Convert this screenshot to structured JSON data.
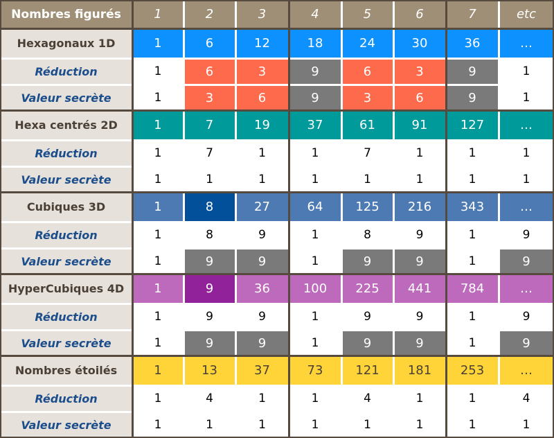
{
  "header": {
    "title": "Nombres figurés",
    "columns": [
      "1",
      "2",
      "3",
      "4",
      "5",
      "6",
      "7",
      "etc"
    ]
  },
  "colors": {
    "header_bg": "#a08f77",
    "label_bg": "#e6e1db",
    "label_main_text": "#4a4036",
    "label_sub_text": "#1c4e8c",
    "divider": "#564a3e",
    "salmon": "#fe6a4c",
    "gray": "#7a7a7a"
  },
  "groups": [
    {
      "title": "Hexagonaux 1D",
      "color": "#0d91ff",
      "sequence": [
        "1",
        "6",
        "12",
        "18",
        "24",
        "30",
        "36",
        "…"
      ],
      "sequence_highlights": {},
      "rows": [
        {
          "label": "Réduction",
          "values": [
            "1",
            "6",
            "3",
            "9",
            "6",
            "3",
            "9",
            "1"
          ],
          "fills": [
            "",
            "#fe6a4c",
            "#fe6a4c",
            "#7a7a7a",
            "#fe6a4c",
            "#fe6a4c",
            "#7a7a7a",
            ""
          ]
        },
        {
          "label": "Valeur secrète",
          "values": [
            "1",
            "3",
            "6",
            "9",
            "3",
            "6",
            "9",
            "1"
          ],
          "fills": [
            "",
            "#fe6a4c",
            "#fe6a4c",
            "#7a7a7a",
            "#fe6a4c",
            "#fe6a4c",
            "#7a7a7a",
            ""
          ]
        }
      ]
    },
    {
      "title": "Hexa centrés 2D",
      "color": "#009a9a",
      "sequence": [
        "1",
        "7",
        "19",
        "37",
        "61",
        "91",
        "127",
        "…"
      ],
      "sequence_highlights": {},
      "rows": [
        {
          "label": "Réduction",
          "values": [
            "1",
            "7",
            "1",
            "1",
            "7",
            "1",
            "1",
            "1"
          ],
          "fills": [
            "",
            "",
            "",
            "",
            "",
            "",
            "",
            ""
          ]
        },
        {
          "label": "Valeur secrète",
          "values": [
            "1",
            "1",
            "1",
            "1",
            "1",
            "1",
            "1",
            "1"
          ],
          "fills": [
            "",
            "",
            "",
            "",
            "",
            "",
            "",
            ""
          ]
        }
      ]
    },
    {
      "title": "Cubiques 3D",
      "color": "#4d7ab2",
      "sequence": [
        "1",
        "8",
        "27",
        "64",
        "125",
        "216",
        "343",
        "…"
      ],
      "sequence_highlights": {
        "1": "#02509a"
      },
      "rows": [
        {
          "label": "Réduction",
          "values": [
            "1",
            "8",
            "9",
            "1",
            "8",
            "9",
            "1",
            "9"
          ],
          "fills": [
            "",
            "",
            "",
            "",
            "",
            "",
            "",
            ""
          ]
        },
        {
          "label": "Valeur secrète",
          "values": [
            "1",
            "9",
            "9",
            "1",
            "9",
            "9",
            "1",
            "9"
          ],
          "fills": [
            "",
            "#7a7a7a",
            "#7a7a7a",
            "",
            "#7a7a7a",
            "#7a7a7a",
            "",
            "#7a7a7a"
          ]
        }
      ]
    },
    {
      "title": "HyperCubiques 4D",
      "color": "#bd6abd",
      "sequence": [
        "1",
        "9",
        "36",
        "100",
        "225",
        "441",
        "784",
        "…"
      ],
      "sequence_highlights": {
        "1": "#91229a"
      },
      "rows": [
        {
          "label": "Réduction",
          "values": [
            "1",
            "9",
            "9",
            "1",
            "9",
            "9",
            "1",
            "9"
          ],
          "fills": [
            "",
            "",
            "",
            "",
            "",
            "",
            "",
            ""
          ]
        },
        {
          "label": "Valeur secrète",
          "values": [
            "1",
            "9",
            "9",
            "1",
            "9",
            "9",
            "1",
            "9"
          ],
          "fills": [
            "",
            "#7a7a7a",
            "#7a7a7a",
            "",
            "#7a7a7a",
            "#7a7a7a",
            "",
            "#7a7a7a"
          ]
        }
      ]
    },
    {
      "title": "Nombres étoilés",
      "color": "#fed438",
      "sequence": [
        "1",
        "13",
        "37",
        "73",
        "121",
        "181",
        "253",
        "…"
      ],
      "sequence_highlights": {},
      "sequence_text_color": "#4a4036",
      "rows": [
        {
          "label": "Réduction",
          "values": [
            "1",
            "4",
            "1",
            "1",
            "4",
            "1",
            "1",
            "4"
          ],
          "fills": [
            "",
            "",
            "",
            "",
            "",
            "",
            "",
            ""
          ]
        },
        {
          "label": "Valeur secrète",
          "values": [
            "1",
            "1",
            "1",
            "1",
            "1",
            "1",
            "1",
            "1"
          ],
          "fills": [
            "",
            "",
            "",
            "",
            "",
            "",
            "",
            ""
          ]
        }
      ]
    }
  ]
}
